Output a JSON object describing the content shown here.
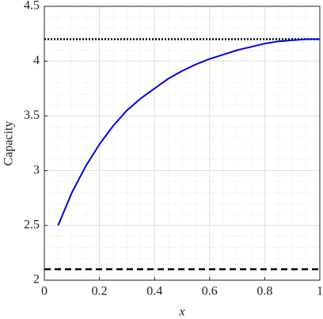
{
  "chart_data": {
    "type": "line",
    "xlabel": "x",
    "ylabel": "Capacity",
    "x": [
      0.05,
      0.1,
      0.15,
      0.2,
      0.25,
      0.3,
      0.35,
      0.4,
      0.45,
      0.5,
      0.55,
      0.6,
      0.65,
      0.7,
      0.75,
      0.8,
      0.85,
      0.9,
      0.95,
      1.0
    ],
    "series": [
      {
        "color": "#0000e6",
        "values": [
          2.5,
          2.8,
          3.04,
          3.24,
          3.41,
          3.55,
          3.66,
          3.75,
          3.84,
          3.91,
          3.97,
          4.02,
          4.06,
          4.1,
          4.13,
          4.16,
          4.18,
          4.19,
          4.2,
          4.2
        ]
      }
    ],
    "hlines": [
      {
        "y": 4.2,
        "style": "dotted",
        "color": "#000000"
      },
      {
        "y": 2.1,
        "style": "dashed",
        "color": "#000000"
      }
    ],
    "xlim": [
      0,
      1
    ],
    "ylim": [
      2,
      4.5
    ],
    "xticks": [
      0,
      0.2,
      0.4,
      0.6,
      0.8,
      1
    ],
    "yticks": [
      2,
      2.5,
      3,
      3.5,
      4,
      4.5
    ],
    "xminorticks": [
      0.05,
      0.1,
      0.15,
      0.25,
      0.3,
      0.35,
      0.45,
      0.5,
      0.55,
      0.65,
      0.7,
      0.75,
      0.85,
      0.9,
      0.95
    ],
    "yminorticks": [
      2.1,
      2.2,
      2.3,
      2.4,
      2.6,
      2.7,
      2.8,
      2.9,
      3.1,
      3.2,
      3.3,
      3.4,
      3.6,
      3.7,
      3.8,
      3.9,
      4.1,
      4.2,
      4.3,
      4.4
    ],
    "grid": true,
    "minor_grid": true
  }
}
